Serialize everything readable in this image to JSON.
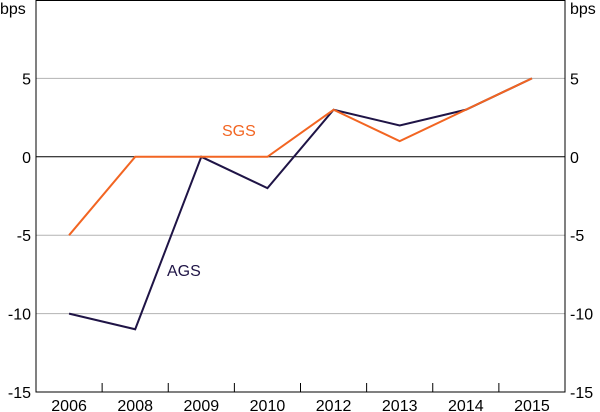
{
  "chart_data": {
    "type": "line",
    "categories": [
      "2006",
      "2008",
      "2009",
      "2010",
      "2012",
      "2013",
      "2014",
      "2015"
    ],
    "series": [
      {
        "name": "AGS",
        "values": [
          -10,
          -11,
          0,
          -2,
          3,
          2,
          3,
          5
        ],
        "color": "#1f1446"
      },
      {
        "name": "SGS",
        "values": [
          -5,
          0,
          0,
          0,
          3,
          1,
          3,
          5
        ],
        "color": "#f26522"
      }
    ],
    "ylabel_left": "bps",
    "ylabel_right": "bps",
    "ylim": [
      -15,
      10
    ],
    "yticks": [
      -15,
      -10,
      -5,
      0,
      5
    ],
    "grid": true
  }
}
